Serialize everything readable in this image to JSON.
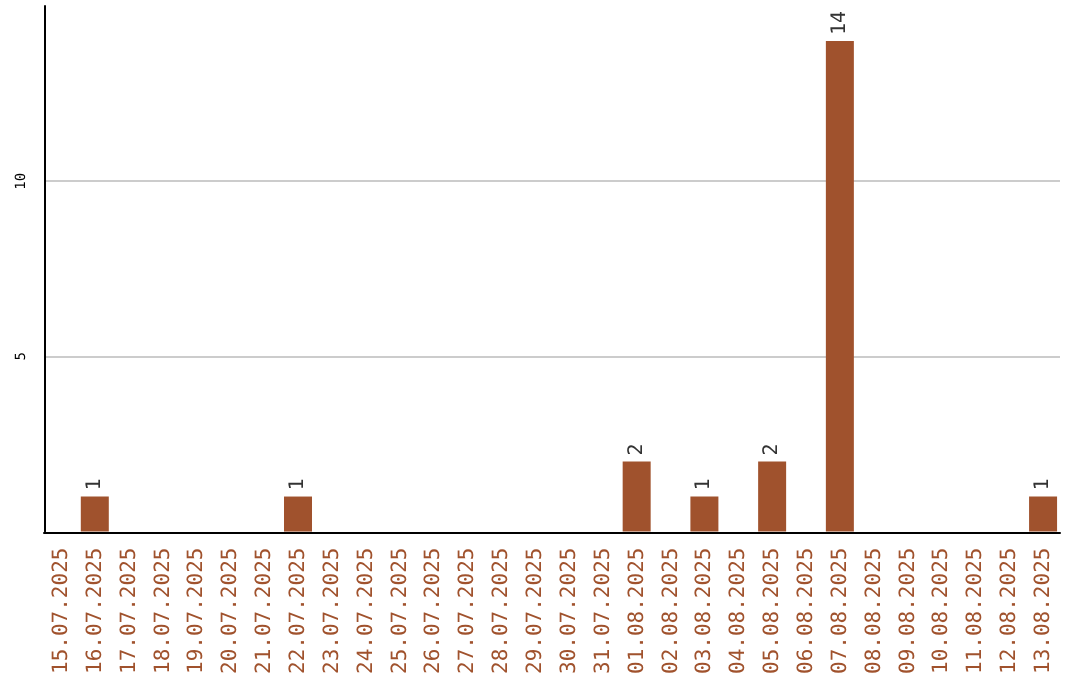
{
  "chart_data": {
    "type": "bar",
    "categories": [
      "15.07.2025",
      "16.07.2025",
      "17.07.2025",
      "18.07.2025",
      "19.07.2025",
      "20.07.2025",
      "21.07.2025",
      "22.07.2025",
      "23.07.2025",
      "24.07.2025",
      "25.07.2025",
      "26.07.2025",
      "27.07.2025",
      "28.07.2025",
      "29.07.2025",
      "30.07.2025",
      "31.07.2025",
      "01.08.2025",
      "02.08.2025",
      "03.08.2025",
      "04.08.2025",
      "05.08.2025",
      "06.08.2025",
      "07.08.2025",
      "08.08.2025",
      "09.08.2025",
      "10.08.2025",
      "11.08.2025",
      "12.08.2025",
      "13.08.2025"
    ],
    "values": [
      0,
      1,
      0,
      0,
      0,
      0,
      0,
      1,
      0,
      0,
      0,
      0,
      0,
      0,
      0,
      0,
      0,
      2,
      0,
      1,
      0,
      2,
      0,
      14,
      0,
      0,
      0,
      0,
      0,
      1
    ],
    "value_labels": [
      null,
      "1",
      null,
      null,
      null,
      null,
      null,
      "1",
      null,
      null,
      null,
      null,
      null,
      null,
      null,
      null,
      null,
      "2",
      null,
      "1",
      null,
      "2",
      null,
      "14",
      null,
      null,
      null,
      null,
      null,
      "1"
    ],
    "color": "#a0522d",
    "ylim": [
      0,
      15
    ],
    "yticks": [
      5,
      10
    ],
    "grid": "y"
  }
}
